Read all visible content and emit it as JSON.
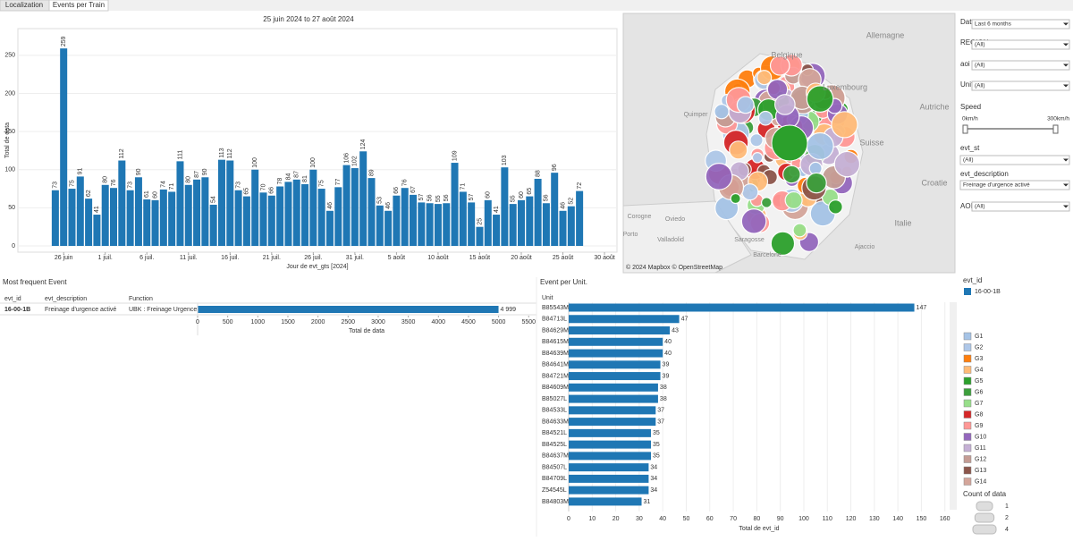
{
  "tabs": [
    "Localization",
    "Events per Train"
  ],
  "chart_data": [
    {
      "type": "bar",
      "title": "25 juin 2024 to 27 août 2024",
      "x_label": "Jour de evt_gts [2024]",
      "y_label": "Total de data",
      "values": [
        73,
        259,
        75,
        91,
        62,
        41,
        80,
        76,
        112,
        73,
        90,
        61,
        60,
        74,
        71,
        111,
        80,
        87,
        90,
        54,
        113,
        112,
        73,
        65,
        100,
        70,
        66,
        78,
        84,
        87,
        81,
        100,
        75,
        46,
        77,
        106,
        102,
        124,
        89,
        53,
        46,
        66,
        76,
        67,
        57,
        56,
        55,
        56,
        109,
        71,
        57,
        25,
        60,
        41,
        103,
        55,
        60,
        65,
        88,
        56,
        96,
        46,
        52,
        72
      ],
      "color": "#1f77b4",
      "xlim": [
        -4.5,
        67.5
      ],
      "xticks": [
        {
          "value": 1,
          "label": "26 juin"
        },
        {
          "value": 6,
          "label": "1 juil."
        },
        {
          "value": 11,
          "label": "6 juil."
        },
        {
          "value": 16,
          "label": "11 juil."
        },
        {
          "value": 21,
          "label": "16 juil."
        },
        {
          "value": 26,
          "label": "21 juil."
        },
        {
          "value": 31,
          "label": "26 juil."
        },
        {
          "value": 36,
          "label": "31 juil."
        },
        {
          "value": 41,
          "label": "5 août"
        },
        {
          "value": 46,
          "label": "10 août"
        },
        {
          "value": 51,
          "label": "15 août"
        },
        {
          "value": 56,
          "label": "20 août"
        },
        {
          "value": 61,
          "label": "25 août"
        },
        {
          "value": 66,
          "label": "30 août"
        }
      ],
      "ylim": [
        0,
        285
      ],
      "yticks": [
        0,
        50,
        100,
        150,
        200,
        250
      ]
    },
    {
      "type": "table-bar",
      "title": "Most frequent Event",
      "columns": [
        "evt_id",
        "evt_description",
        "Function"
      ],
      "rows": [
        [
          "16-00-1B",
          "Freinage d'urgence activé",
          "UBK : Freinage Urgence"
        ]
      ],
      "values": [
        4999
      ],
      "value_labels": [
        "4 999"
      ],
      "color": "#1f77b4",
      "x_label": "Total de data",
      "xlim": [
        0,
        5600
      ],
      "xticks": [
        0,
        500,
        1000,
        1500,
        2000,
        2500,
        3000,
        3500,
        4000,
        4500,
        5000,
        5500
      ]
    },
    {
      "type": "hbar",
      "title": "Event per Unit.",
      "category_label": "Unit",
      "categories": [
        "B85543M",
        "B84713L",
        "B84629M",
        "B84615M",
        "B84639M",
        "B84641M",
        "B84721M",
        "B84609M",
        "B85027L",
        "B84533L",
        "B84633M",
        "B84521L",
        "B84525L",
        "B84637M",
        "B84507L",
        "B84709L",
        "Z54545L",
        "B84803M"
      ],
      "values": [
        147,
        47,
        43,
        40,
        40,
        39,
        39,
        38,
        38,
        37,
        37,
        35,
        35,
        35,
        34,
        34,
        34,
        31
      ],
      "color": "#1f77b4",
      "x_label": "Total de evt_id",
      "xlim": [
        0,
        162
      ],
      "xticks": [
        0,
        10,
        20,
        30,
        40,
        50,
        60,
        70,
        80,
        90,
        100,
        110,
        120,
        130,
        140,
        150,
        160
      ]
    }
  ],
  "filters": [
    {
      "label": "Date",
      "value": "Last 6 months"
    },
    {
      "label": "REGION",
      "value": "(All)"
    },
    {
      "label": "aoi",
      "value": "(All)"
    },
    {
      "label": "Unit",
      "value": "(All)"
    },
    {
      "label": "evt_st",
      "value": "(All)"
    },
    {
      "label": "evt_description",
      "value": "Freinage d'urgence activé"
    },
    {
      "label": "AOI Group",
      "value": "(All)"
    }
  ],
  "speed": {
    "label": "Speed",
    "min_label": "0km/h",
    "max_label": "300km/h"
  },
  "map": {
    "places": [
      "Allemagne",
      "Belgique",
      "Luxembourg",
      "Suisse",
      "Italie",
      "Autriche",
      "Quimper",
      "Corogne",
      "Oviedo",
      "Valladolid",
      "Saragosse",
      "Barcelone",
      "Porto",
      "Ajaccio",
      "Croatie"
    ],
    "attribution": "© 2024 Mapbox © OpenStreetMap"
  },
  "legend": {
    "title": "evt_id",
    "items": [
      {
        "name": "16-00-1B",
        "color": "#1f77b4"
      }
    ]
  },
  "groups": [
    {
      "name": "G1",
      "color": "#a5c3e6"
    },
    {
      "name": "G2",
      "color": "#aec7e8"
    },
    {
      "name": "G3",
      "color": "#ff7f0e"
    },
    {
      "name": "G4",
      "color": "#ffbb78"
    },
    {
      "name": "G5",
      "color": "#2ca02c"
    },
    {
      "name": "G6",
      "color": "#3c9f3c"
    },
    {
      "name": "G7",
      "color": "#98df8a"
    },
    {
      "name": "G8",
      "color": "#d62728"
    },
    {
      "name": "G9",
      "color": "#ff9896"
    },
    {
      "name": "G10",
      "color": "#9467bd"
    },
    {
      "name": "G11",
      "color": "#c5b0d5"
    },
    {
      "name": "G12",
      "color": "#c49c94"
    },
    {
      "name": "G13",
      "color": "#8c564b"
    },
    {
      "name": "G14",
      "color": "#d4a59a"
    }
  ],
  "size_legend": {
    "title": "Count of data",
    "items": [
      1,
      2,
      4
    ]
  }
}
